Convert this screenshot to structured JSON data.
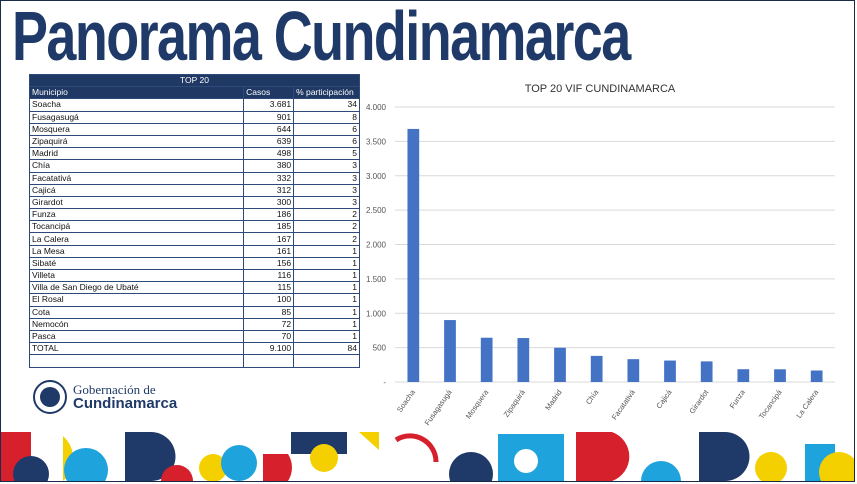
{
  "page_title": "Panorama Cundinamarca",
  "table": {
    "title": "TOP 20",
    "headers": [
      "Municipio",
      "Casos",
      "% participación"
    ],
    "rows": [
      [
        "Soacha",
        "3.681",
        "34"
      ],
      [
        "Fusagasugá",
        "901",
        "8"
      ],
      [
        "Mosquera",
        "644",
        "6"
      ],
      [
        "Zipaquirá",
        "639",
        "6"
      ],
      [
        "Madrid",
        "498",
        "5"
      ],
      [
        "Chía",
        "380",
        "3"
      ],
      [
        "Facatativá",
        "332",
        "3"
      ],
      [
        "Cajicá",
        "312",
        "3"
      ],
      [
        "Girardot",
        "300",
        "3"
      ],
      [
        "Funza",
        "186",
        "2"
      ],
      [
        "Tocancipá",
        "185",
        "2"
      ],
      [
        "La Calera",
        "167",
        "2"
      ],
      [
        "La Mesa",
        "161",
        "1"
      ],
      [
        "Sibaté",
        "156",
        "1"
      ],
      [
        "Villeta",
        "116",
        "1"
      ],
      [
        "Villa de San Diego de Ubaté",
        "115",
        "1"
      ],
      [
        "El Rosal",
        "100",
        "1"
      ],
      [
        "Cota",
        "85",
        "1"
      ],
      [
        "Nemocón",
        "72",
        "1"
      ],
      [
        "Pasca",
        "70",
        "1"
      ]
    ],
    "total": [
      "TOTAL",
      "9.100",
      "84"
    ]
  },
  "logo": {
    "line1": "Gobernación de",
    "line2": "Cundinamarca"
  },
  "chart_data": {
    "type": "bar",
    "title": "TOP 20 VIF CUNDINAMARCA",
    "categories": [
      "Soacha",
      "Fusagasugá",
      "Mosquera",
      "Zipaquirá",
      "Madrid",
      "Chía",
      "Facatativá",
      "Cajicá",
      "Girardot",
      "Funza",
      "Tocancipá",
      "La Calera"
    ],
    "values": [
      3681,
      901,
      644,
      639,
      498,
      380,
      332,
      312,
      300,
      186,
      185,
      167
    ],
    "ylim": [
      0,
      4000
    ],
    "yticks": [
      0,
      500,
      1000,
      1500,
      2000,
      2500,
      3000,
      3500,
      4000
    ],
    "ytick_labels": [
      "-",
      "500",
      "1.000",
      "1.500",
      "2.000",
      "2.500",
      "3.000",
      "3.500",
      "4.000"
    ],
    "grid": true,
    "bar_color": "#4472c4"
  },
  "colors": {
    "navy": "#1f3864",
    "brand_blue": "#1f3a68",
    "yellow": "#f5d000",
    "red": "#d6202c",
    "light_blue": "#1fa3dd"
  }
}
